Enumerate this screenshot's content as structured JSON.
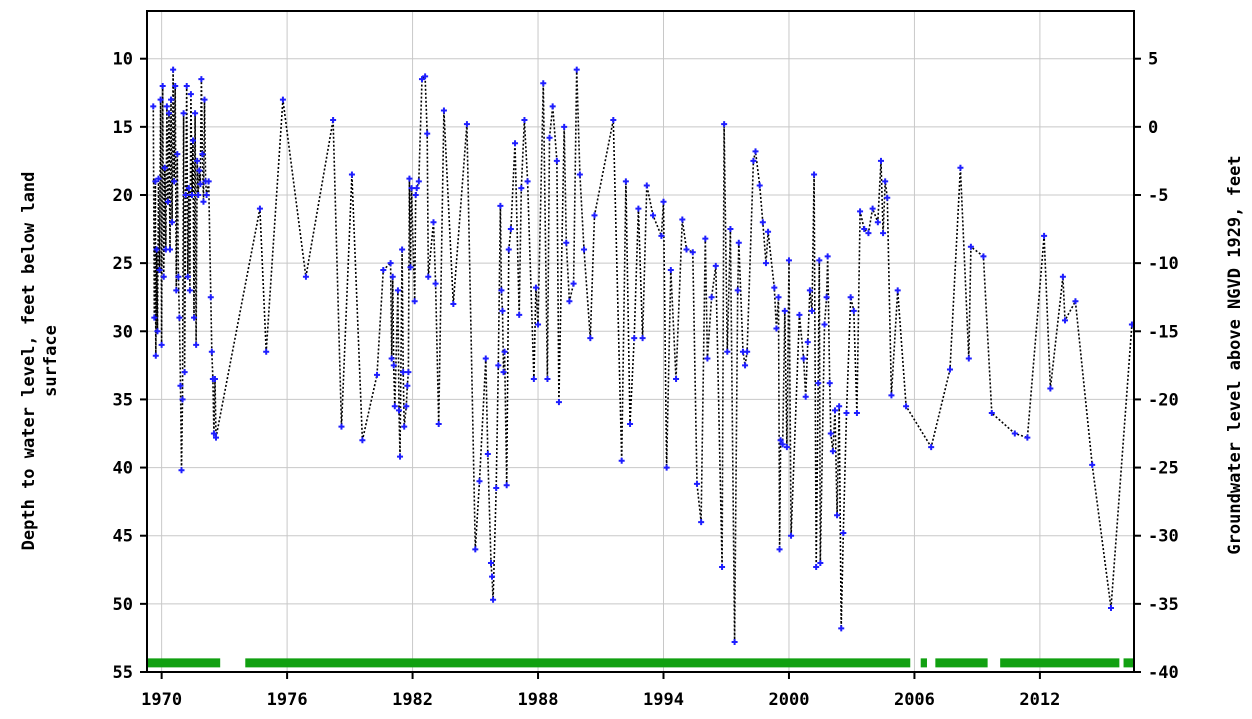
{
  "chart_data": {
    "type": "line",
    "ylabel_left": [
      "Depth to water level, feet below land",
      "surface"
    ],
    "ylabel_right": "Groundwater level above NGVD 1929, feet",
    "xlim": [
      1969.3,
      2016.5
    ],
    "ylim_left": [
      55,
      6.5
    ],
    "ylim_right": [
      -40,
      8.5
    ],
    "x_ticks": [
      1970,
      1976,
      1982,
      1988,
      1994,
      2000,
      2006,
      2012
    ],
    "y_ticks_left": [
      10,
      15,
      20,
      25,
      30,
      35,
      40,
      45,
      50,
      55
    ],
    "y_ticks_right": [
      5,
      0,
      -5,
      -10,
      -15,
      -20,
      -25,
      -30,
      -35,
      -40
    ],
    "grid": true,
    "colors": {
      "points": "#1e1eff",
      "line": "#000000",
      "bar": "#11a011",
      "grid": "#c8c8c8"
    },
    "depth_series": [
      {
        "x": 1969.6,
        "y": 13.5
      },
      {
        "x": 1969.65,
        "y": 29
      },
      {
        "x": 1969.7,
        "y": 19
      },
      {
        "x": 1969.72,
        "y": 31.8
      },
      {
        "x": 1969.76,
        "y": 24
      },
      {
        "x": 1969.8,
        "y": 30
      },
      {
        "x": 1969.85,
        "y": 18.8
      },
      {
        "x": 1969.9,
        "y": 25.5
      },
      {
        "x": 1969.95,
        "y": 13
      },
      {
        "x": 1970.0,
        "y": 31
      },
      {
        "x": 1970.05,
        "y": 12
      },
      {
        "x": 1970.1,
        "y": 26
      },
      {
        "x": 1970.15,
        "y": 18
      },
      {
        "x": 1970.2,
        "y": 24
      },
      {
        "x": 1970.25,
        "y": 13.5
      },
      {
        "x": 1970.3,
        "y": 20.5
      },
      {
        "x": 1970.35,
        "y": 14
      },
      {
        "x": 1970.4,
        "y": 24
      },
      {
        "x": 1970.45,
        "y": 13
      },
      {
        "x": 1970.5,
        "y": 22
      },
      {
        "x": 1970.55,
        "y": 10.8
      },
      {
        "x": 1970.6,
        "y": 19
      },
      {
        "x": 1970.65,
        "y": 12
      },
      {
        "x": 1970.7,
        "y": 27
      },
      {
        "x": 1970.75,
        "y": 17
      },
      {
        "x": 1970.8,
        "y": 26
      },
      {
        "x": 1970.85,
        "y": 29
      },
      {
        "x": 1970.9,
        "y": 34
      },
      {
        "x": 1970.95,
        "y": 40.2
      },
      {
        "x": 1971.0,
        "y": 35
      },
      {
        "x": 1971.05,
        "y": 14
      },
      {
        "x": 1971.1,
        "y": 33
      },
      {
        "x": 1971.15,
        "y": 20
      },
      {
        "x": 1971.2,
        "y": 12
      },
      {
        "x": 1971.25,
        "y": 26
      },
      {
        "x": 1971.3,
        "y": 19.5
      },
      {
        "x": 1971.35,
        "y": 27
      },
      {
        "x": 1971.4,
        "y": 12.6
      },
      {
        "x": 1971.45,
        "y": 20
      },
      {
        "x": 1971.5,
        "y": 16
      },
      {
        "x": 1971.55,
        "y": 29
      },
      {
        "x": 1971.6,
        "y": 14
      },
      {
        "x": 1971.65,
        "y": 31
      },
      {
        "x": 1971.7,
        "y": 17.5
      },
      {
        "x": 1971.75,
        "y": 20
      },
      {
        "x": 1971.8,
        "y": 18.2
      },
      {
        "x": 1971.85,
        "y": 19.2
      },
      {
        "x": 1971.9,
        "y": 11.5
      },
      {
        "x": 1971.95,
        "y": 17
      },
      {
        "x": 1972.0,
        "y": 20.5
      },
      {
        "x": 1972.05,
        "y": 13
      },
      {
        "x": 1972.1,
        "y": 19
      },
      {
        "x": 1972.15,
        "y": 20
      },
      {
        "x": 1972.25,
        "y": 19
      },
      {
        "x": 1972.35,
        "y": 27.5
      },
      {
        "x": 1972.4,
        "y": 31.5
      },
      {
        "x": 1972.45,
        "y": 33.5
      },
      {
        "x": 1972.5,
        "y": 37.5
      },
      {
        "x": 1972.55,
        "y": 33.5
      },
      {
        "x": 1972.6,
        "y": 37.8
      },
      {
        "x": 1974.7,
        "y": 21
      },
      {
        "x": 1975.0,
        "y": 31.5
      },
      {
        "x": 1975.8,
        "y": 13
      },
      {
        "x": 1976.9,
        "y": 26
      },
      {
        "x": 1978.2,
        "y": 14.5
      },
      {
        "x": 1978.6,
        "y": 37
      },
      {
        "x": 1979.1,
        "y": 18.5
      },
      {
        "x": 1979.6,
        "y": 38
      },
      {
        "x": 1980.3,
        "y": 33.2
      },
      {
        "x": 1980.6,
        "y": 25.5
      },
      {
        "x": 1980.95,
        "y": 25
      },
      {
        "x": 1981.0,
        "y": 32
      },
      {
        "x": 1981.05,
        "y": 26
      },
      {
        "x": 1981.1,
        "y": 32.5
      },
      {
        "x": 1981.15,
        "y": 35.5
      },
      {
        "x": 1981.3,
        "y": 27
      },
      {
        "x": 1981.35,
        "y": 35.8
      },
      {
        "x": 1981.4,
        "y": 39.2
      },
      {
        "x": 1981.5,
        "y": 24
      },
      {
        "x": 1981.55,
        "y": 33
      },
      {
        "x": 1981.6,
        "y": 37
      },
      {
        "x": 1981.7,
        "y": 35.5
      },
      {
        "x": 1981.75,
        "y": 34
      },
      {
        "x": 1981.8,
        "y": 33
      },
      {
        "x": 1981.85,
        "y": 18.8
      },
      {
        "x": 1981.9,
        "y": 25.3
      },
      {
        "x": 1981.95,
        "y": 19.5
      },
      {
        "x": 1982.1,
        "y": 27.8
      },
      {
        "x": 1982.15,
        "y": 20
      },
      {
        "x": 1982.2,
        "y": 19.5
      },
      {
        "x": 1982.3,
        "y": 19
      },
      {
        "x": 1982.45,
        "y": 11.5
      },
      {
        "x": 1982.6,
        "y": 11.3
      },
      {
        "x": 1982.7,
        "y": 15.5
      },
      {
        "x": 1982.75,
        "y": 26
      },
      {
        "x": 1983.0,
        "y": 22
      },
      {
        "x": 1983.1,
        "y": 26.5
      },
      {
        "x": 1983.25,
        "y": 36.8
      },
      {
        "x": 1983.5,
        "y": 13.8
      },
      {
        "x": 1983.95,
        "y": 28
      },
      {
        "x": 1984.6,
        "y": 14.8
      },
      {
        "x": 1985.0,
        "y": 46
      },
      {
        "x": 1985.2,
        "y": 41
      },
      {
        "x": 1985.5,
        "y": 32
      },
      {
        "x": 1985.6,
        "y": 39
      },
      {
        "x": 1985.75,
        "y": 47
      },
      {
        "x": 1985.8,
        "y": 48
      },
      {
        "x": 1985.85,
        "y": 49.7
      },
      {
        "x": 1986.0,
        "y": 41.5
      },
      {
        "x": 1986.1,
        "y": 32.5
      },
      {
        "x": 1986.2,
        "y": 20.8
      },
      {
        "x": 1986.25,
        "y": 27
      },
      {
        "x": 1986.3,
        "y": 28.5
      },
      {
        "x": 1986.35,
        "y": 33
      },
      {
        "x": 1986.4,
        "y": 31.5
      },
      {
        "x": 1986.5,
        "y": 41.3
      },
      {
        "x": 1986.6,
        "y": 24
      },
      {
        "x": 1986.7,
        "y": 22.5
      },
      {
        "x": 1986.9,
        "y": 16.2
      },
      {
        "x": 1987.1,
        "y": 28.8
      },
      {
        "x": 1987.2,
        "y": 19.5
      },
      {
        "x": 1987.35,
        "y": 14.5
      },
      {
        "x": 1987.5,
        "y": 19
      },
      {
        "x": 1987.8,
        "y": 33.5
      },
      {
        "x": 1987.9,
        "y": 26.8
      },
      {
        "x": 1988.0,
        "y": 29.5
      },
      {
        "x": 1988.25,
        "y": 11.8
      },
      {
        "x": 1988.45,
        "y": 33.5
      },
      {
        "x": 1988.55,
        "y": 15.8
      },
      {
        "x": 1988.7,
        "y": 13.5
      },
      {
        "x": 1988.9,
        "y": 17.5
      },
      {
        "x": 1989.0,
        "y": 35.2
      },
      {
        "x": 1989.25,
        "y": 15
      },
      {
        "x": 1989.35,
        "y": 23.5
      },
      {
        "x": 1989.5,
        "y": 27.8
      },
      {
        "x": 1989.7,
        "y": 26.5
      },
      {
        "x": 1989.85,
        "y": 10.8
      },
      {
        "x": 1990.0,
        "y": 18.5
      },
      {
        "x": 1990.2,
        "y": 24
      },
      {
        "x": 1990.5,
        "y": 30.5
      },
      {
        "x": 1990.7,
        "y": 21.5
      },
      {
        "x": 1991.6,
        "y": 14.5
      },
      {
        "x": 1992.0,
        "y": 39.5
      },
      {
        "x": 1992.2,
        "y": 19
      },
      {
        "x": 1992.4,
        "y": 36.8
      },
      {
        "x": 1992.6,
        "y": 30.5
      },
      {
        "x": 1992.8,
        "y": 21
      },
      {
        "x": 1993.0,
        "y": 30.5
      },
      {
        "x": 1993.2,
        "y": 19.3
      },
      {
        "x": 1993.5,
        "y": 21.5
      },
      {
        "x": 1993.9,
        "y": 23
      },
      {
        "x": 1994.0,
        "y": 20.5
      },
      {
        "x": 1994.15,
        "y": 40
      },
      {
        "x": 1994.35,
        "y": 25.5
      },
      {
        "x": 1994.6,
        "y": 33.5
      },
      {
        "x": 1994.9,
        "y": 21.8
      },
      {
        "x": 1995.1,
        "y": 24
      },
      {
        "x": 1995.4,
        "y": 24.2
      },
      {
        "x": 1995.6,
        "y": 41.2
      },
      {
        "x": 1995.8,
        "y": 44
      },
      {
        "x": 1996.0,
        "y": 23.2
      },
      {
        "x": 1996.1,
        "y": 32
      },
      {
        "x": 1996.3,
        "y": 27.5
      },
      {
        "x": 1996.5,
        "y": 25.2
      },
      {
        "x": 1996.8,
        "y": 47.3
      },
      {
        "x": 1996.9,
        "y": 14.8
      },
      {
        "x": 1997.05,
        "y": 31.5
      },
      {
        "x": 1997.2,
        "y": 22.5
      },
      {
        "x": 1997.4,
        "y": 52.8
      },
      {
        "x": 1997.55,
        "y": 27
      },
      {
        "x": 1997.6,
        "y": 23.5
      },
      {
        "x": 1997.8,
        "y": 31.5
      },
      {
        "x": 1997.9,
        "y": 32.5
      },
      {
        "x": 1998.0,
        "y": 31.5
      },
      {
        "x": 1998.3,
        "y": 17.5
      },
      {
        "x": 1998.4,
        "y": 16.8
      },
      {
        "x": 1998.6,
        "y": 19.3
      },
      {
        "x": 1998.75,
        "y": 22
      },
      {
        "x": 1998.9,
        "y": 25
      },
      {
        "x": 1999.0,
        "y": 22.7
      },
      {
        "x": 1999.3,
        "y": 26.8
      },
      {
        "x": 1999.4,
        "y": 29.8
      },
      {
        "x": 1999.5,
        "y": 27.5
      },
      {
        "x": 1999.55,
        "y": 46
      },
      {
        "x": 1999.6,
        "y": 38
      },
      {
        "x": 1999.7,
        "y": 38.3
      },
      {
        "x": 1999.8,
        "y": 28.5
      },
      {
        "x": 1999.9,
        "y": 38.5
      },
      {
        "x": 2000.0,
        "y": 24.8
      },
      {
        "x": 2000.1,
        "y": 45
      },
      {
        "x": 2000.5,
        "y": 28.8
      },
      {
        "x": 2000.7,
        "y": 32
      },
      {
        "x": 2000.8,
        "y": 34.8
      },
      {
        "x": 2000.9,
        "y": 30.8
      },
      {
        "x": 2001.0,
        "y": 27
      },
      {
        "x": 2001.1,
        "y": 28.5
      },
      {
        "x": 2001.2,
        "y": 18.5
      },
      {
        "x": 2001.3,
        "y": 47.3
      },
      {
        "x": 2001.4,
        "y": 33.8
      },
      {
        "x": 2001.45,
        "y": 24.8
      },
      {
        "x": 2001.5,
        "y": 47
      },
      {
        "x": 2001.7,
        "y": 29.5
      },
      {
        "x": 2001.8,
        "y": 27.5
      },
      {
        "x": 2001.85,
        "y": 24.5
      },
      {
        "x": 2001.95,
        "y": 33.8
      },
      {
        "x": 2002.0,
        "y": 37.5
      },
      {
        "x": 2002.1,
        "y": 38.8
      },
      {
        "x": 2002.2,
        "y": 35.8
      },
      {
        "x": 2002.3,
        "y": 43.5
      },
      {
        "x": 2002.4,
        "y": 35.5
      },
      {
        "x": 2002.5,
        "y": 51.8
      },
      {
        "x": 2002.6,
        "y": 44.8
      },
      {
        "x": 2002.75,
        "y": 36
      },
      {
        "x": 2002.95,
        "y": 27.5
      },
      {
        "x": 2003.1,
        "y": 28.5
      },
      {
        "x": 2003.25,
        "y": 36
      },
      {
        "x": 2003.4,
        "y": 21.2
      },
      {
        "x": 2003.6,
        "y": 22.5
      },
      {
        "x": 2003.8,
        "y": 22.8
      },
      {
        "x": 2004.0,
        "y": 21
      },
      {
        "x": 2004.25,
        "y": 22
      },
      {
        "x": 2004.4,
        "y": 17.5
      },
      {
        "x": 2004.5,
        "y": 22.8
      },
      {
        "x": 2004.6,
        "y": 19
      },
      {
        "x": 2004.7,
        "y": 20.2
      },
      {
        "x": 2004.9,
        "y": 34.7
      },
      {
        "x": 2005.2,
        "y": 27
      },
      {
        "x": 2005.6,
        "y": 35.5
      },
      {
        "x": 2006.8,
        "y": 38.5
      },
      {
        "x": 2007.7,
        "y": 32.8
      },
      {
        "x": 2008.2,
        "y": 18
      },
      {
        "x": 2008.6,
        "y": 32
      },
      {
        "x": 2008.7,
        "y": 23.8
      },
      {
        "x": 2009.3,
        "y": 24.5
      },
      {
        "x": 2009.7,
        "y": 36
      },
      {
        "x": 2010.8,
        "y": 37.5
      },
      {
        "x": 2011.4,
        "y": 37.8
      },
      {
        "x": 2012.2,
        "y": 23
      },
      {
        "x": 2012.5,
        "y": 34.2
      },
      {
        "x": 2013.1,
        "y": 26
      },
      {
        "x": 2013.2,
        "y": 29.2
      },
      {
        "x": 2013.7,
        "y": 27.8
      },
      {
        "x": 2014.5,
        "y": 39.8
      },
      {
        "x": 2015.4,
        "y": 50.3
      },
      {
        "x": 2016.4,
        "y": 29.5
      }
    ],
    "approved_bar_periods": [
      [
        1969.3,
        1972.8
      ],
      [
        1974.0,
        2005.8
      ],
      [
        2006.3,
        2006.6
      ],
      [
        2007.0,
        2009.5
      ],
      [
        2010.1,
        2015.8
      ],
      [
        2016.0,
        2016.5
      ]
    ]
  }
}
